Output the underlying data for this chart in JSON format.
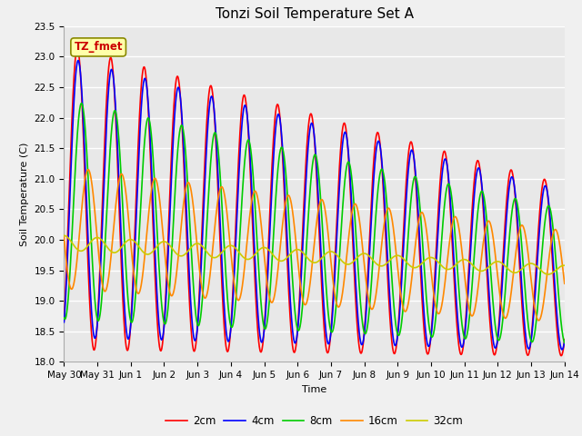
{
  "title": "Tonzi Soil Temperature Set A",
  "xlabel": "Time",
  "ylabel": "Soil Temperature (C)",
  "annotation": "TZ_fmet",
  "ylim": [
    18.0,
    23.5
  ],
  "yticks": [
    18.0,
    18.5,
    19.0,
    19.5,
    20.0,
    20.5,
    21.0,
    21.5,
    22.0,
    22.5,
    23.0,
    23.5
  ],
  "xtick_labels": [
    "May 30",
    "May 31",
    "Jun 1",
    "Jun 2",
    "Jun 3",
    "Jun 4",
    "Jun 5",
    "Jun 6",
    "Jun 7",
    "Jun 8",
    "Jun 9",
    "Jun 10",
    "Jun 11",
    "Jun 12",
    "Jun 13",
    "Jun 14"
  ],
  "series_colors": [
    "#ff0000",
    "#0000ff",
    "#00cc00",
    "#ff8800",
    "#cccc00"
  ],
  "series_names": [
    "2cm",
    "4cm",
    "8cm",
    "16cm",
    "32cm"
  ],
  "line_width": 1.2,
  "fig_bg_color": "#f0f0f0",
  "axes_bg_color": "#e8e8e8",
  "grid_color": "#ffffff",
  "title_fontsize": 11,
  "label_fontsize": 8,
  "tick_fontsize": 7.5
}
